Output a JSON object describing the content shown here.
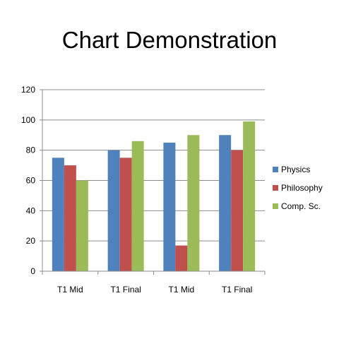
{
  "chart_data": {
    "type": "bar",
    "title": "Chart Demonstration",
    "xlabel": "",
    "ylabel": "",
    "categories": [
      "T1 Mid",
      "T1 Final",
      "T1 Mid",
      "T1 Final"
    ],
    "ylim": [
      0,
      120
    ],
    "yticks": [
      0,
      20,
      40,
      60,
      80,
      100,
      120
    ],
    "grid": true,
    "legend_position": "right",
    "series": [
      {
        "name": "Physics",
        "color": "#4f81bd",
        "values": [
          75,
          80,
          85,
          90
        ]
      },
      {
        "name": "Philosophy",
        "color": "#c0504d",
        "values": [
          70,
          75,
          17,
          80
        ]
      },
      {
        "name": "Comp. Sc.",
        "color": "#9bbb59",
        "values": [
          60,
          86,
          90,
          99
        ]
      }
    ]
  }
}
